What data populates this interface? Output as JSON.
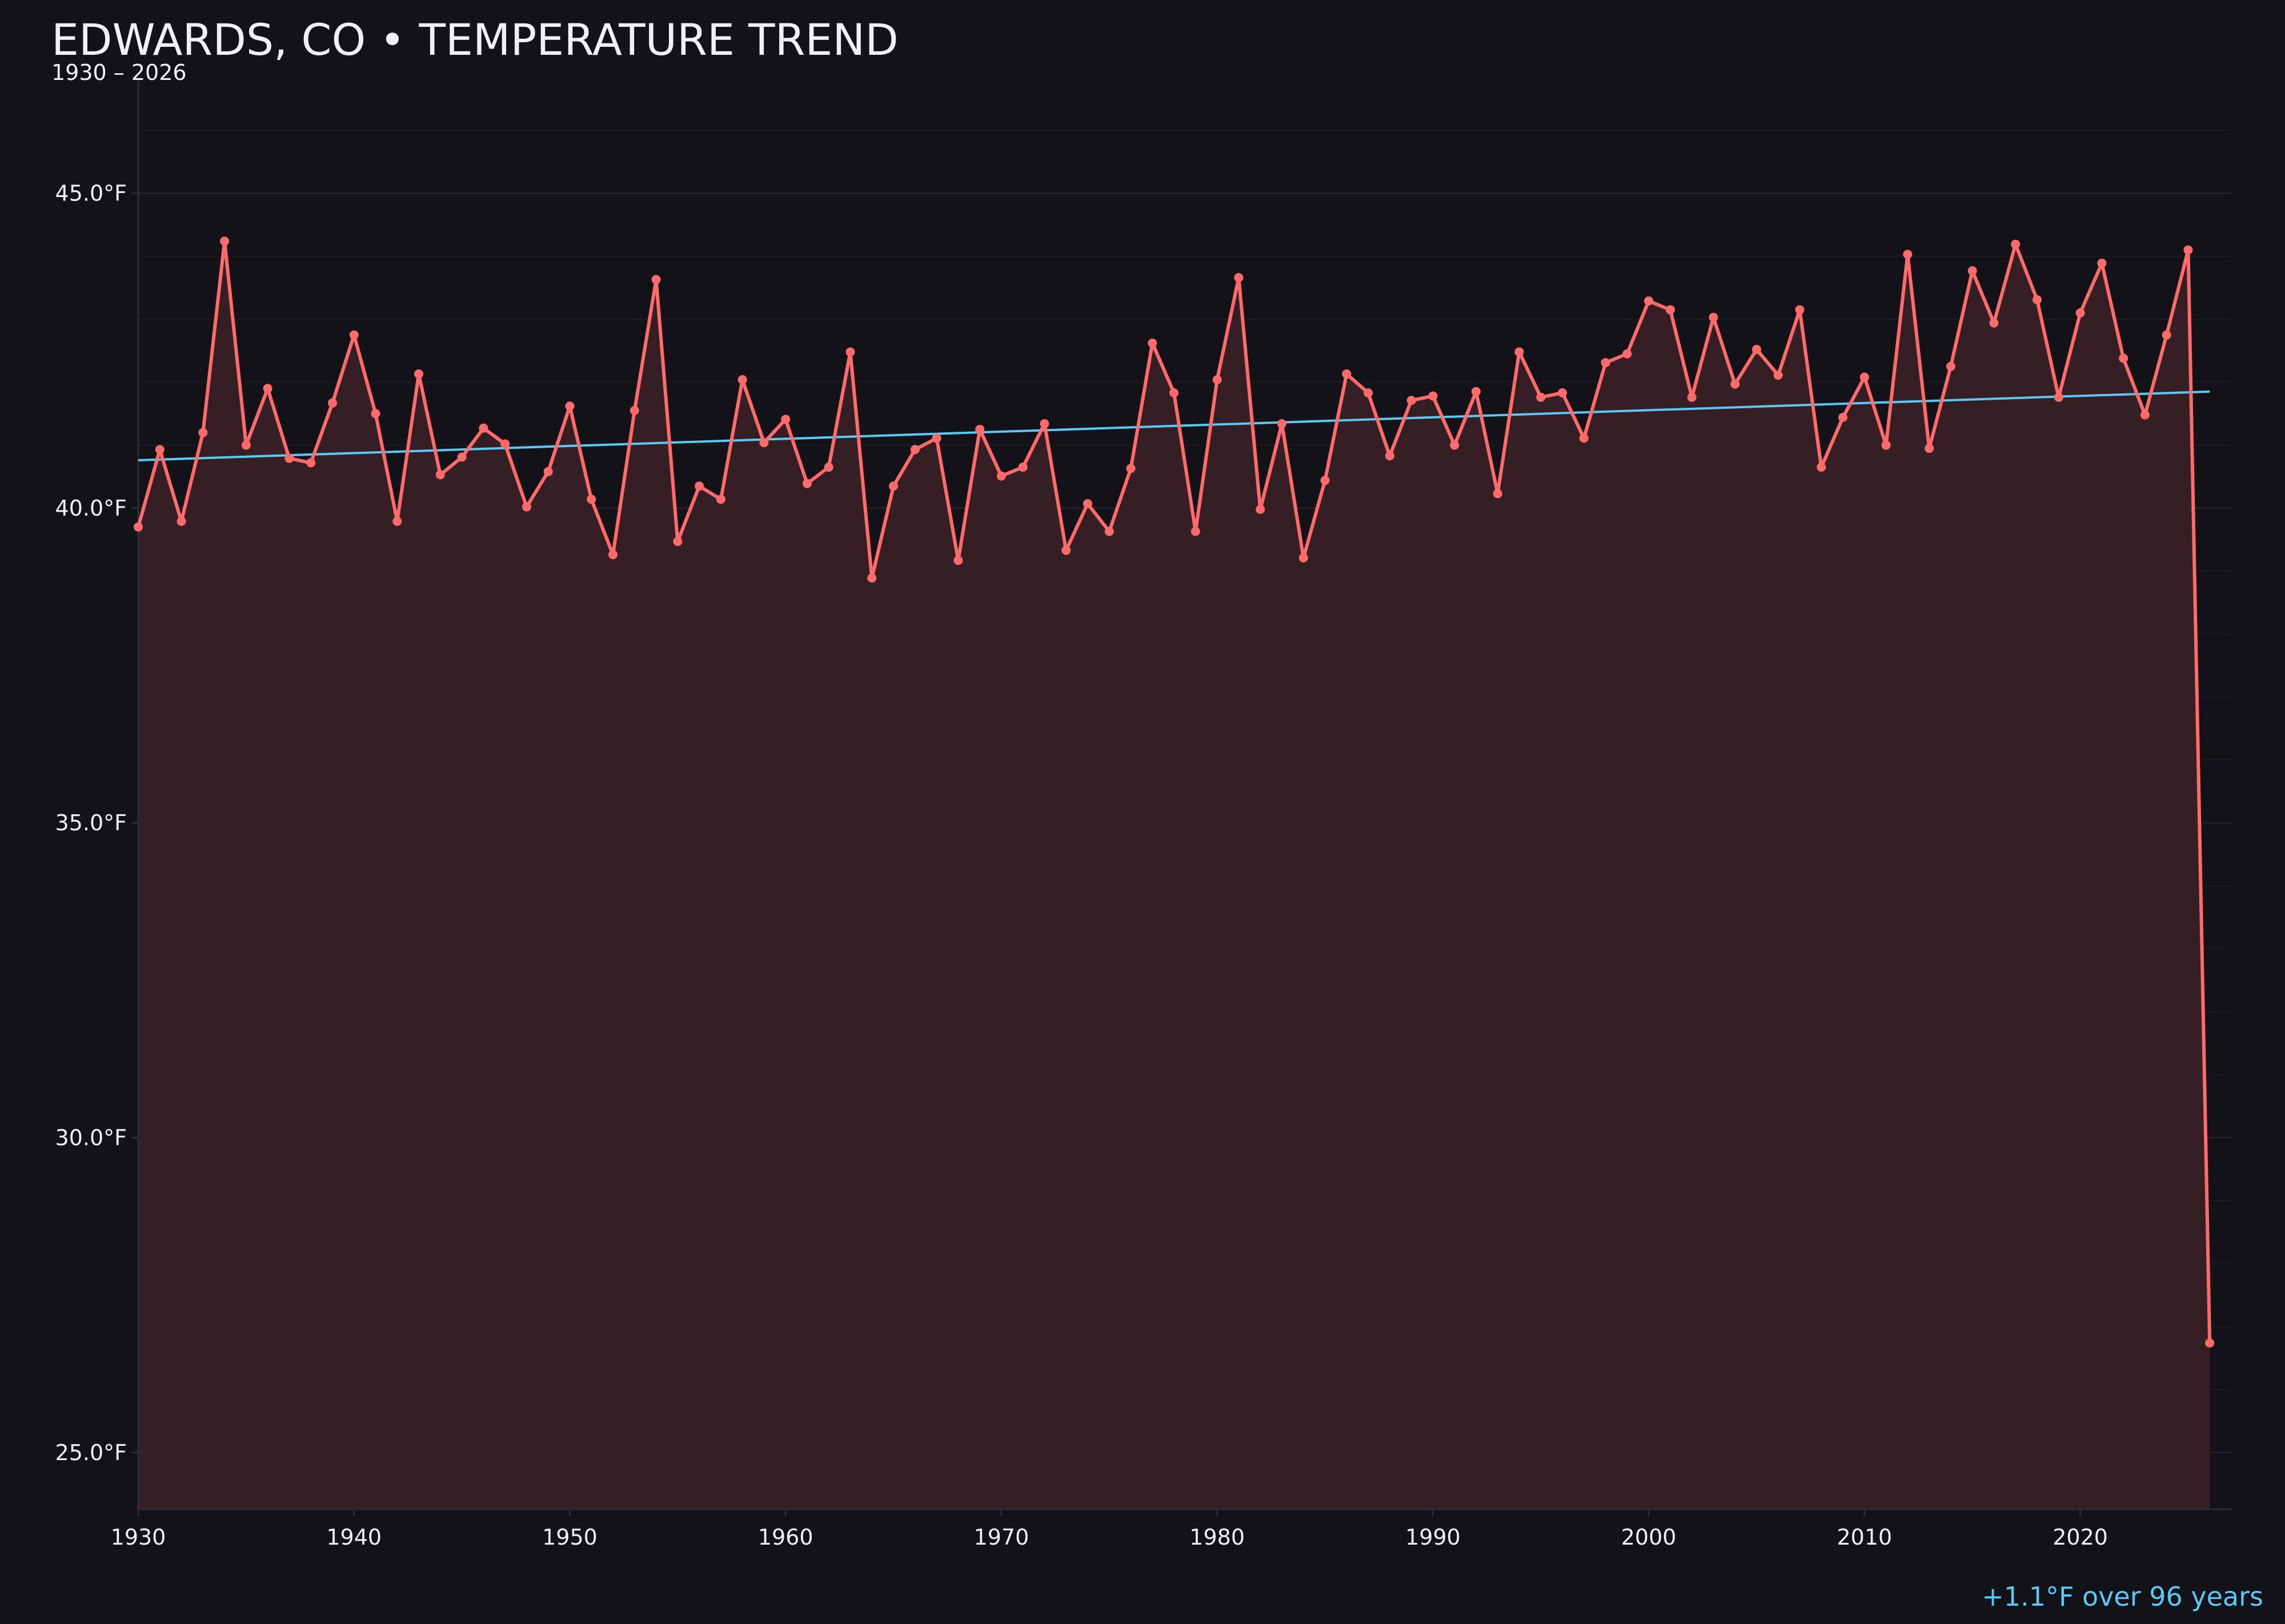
{
  "title": "EDWARDS, CO • TEMPERATURE TREND",
  "subtitle": "1930 – 2026",
  "annotation": "+1.1°F over 96 years",
  "colors": {
    "background": "#121218",
    "line": "#ff6b6b",
    "fill": "#351f25",
    "trend": "#5bc8f5",
    "text": "#f0f0f5",
    "grid": "#24212a"
  },
  "chart_data": {
    "type": "line",
    "title": "EDWARDS, CO • TEMPERATURE TREND",
    "subtitle": "1930 – 2026",
    "xlabel": "",
    "ylabel": "",
    "xlim": [
      1930,
      2027
    ],
    "ylim": [
      24.1,
      46.8
    ],
    "grid": true,
    "area_fill": true,
    "x_ticks": [
      1930,
      1940,
      1950,
      1960,
      1970,
      1980,
      1990,
      2000,
      2010,
      2020
    ],
    "x_tick_labels": [
      "1930",
      "1940",
      "1950",
      "1960",
      "1970",
      "1980",
      "1990",
      "2000",
      "2010",
      "2020"
    ],
    "y_ticks": [
      25,
      30,
      35,
      40,
      45
    ],
    "y_tick_labels": [
      "25.0°F",
      "30.0°F",
      "35.0°F",
      "40.0°F",
      "45.0°F"
    ],
    "x_start": 1930,
    "values": [
      39.7,
      40.93,
      39.79,
      41.2,
      44.24,
      41.0,
      41.9,
      40.79,
      40.72,
      41.67,
      42.75,
      41.5,
      39.79,
      42.13,
      40.53,
      40.81,
      41.27,
      41.02,
      40.02,
      40.58,
      41.62,
      40.14,
      39.26,
      41.55,
      43.63,
      39.47,
      40.35,
      40.14,
      42.04,
      41.04,
      41.41,
      40.39,
      40.65,
      42.48,
      38.89,
      40.35,
      40.93,
      41.11,
      39.17,
      41.25,
      40.51,
      40.65,
      41.34,
      39.33,
      40.07,
      39.63,
      40.63,
      42.62,
      41.83,
      39.63,
      42.04,
      43.66,
      39.98,
      41.34,
      39.21,
      40.44,
      42.13,
      41.83,
      40.83,
      41.71,
      41.78,
      41.0,
      41.85,
      40.23,
      42.48,
      41.76,
      41.83,
      41.11,
      42.31,
      42.45,
      43.29,
      43.15,
      41.76,
      43.03,
      41.97,
      42.52,
      42.11,
      43.15,
      40.65,
      41.44,
      42.08,
      41.0,
      44.03,
      40.95,
      42.25,
      43.77,
      42.94,
      44.19,
      43.31,
      41.76,
      43.1,
      43.89,
      42.38,
      41.48,
      42.75,
      44.1,
      26.74
    ],
    "trend": {
      "x": [
        1930,
        2026
      ],
      "y": [
        40.76,
        41.85
      ]
    },
    "annotation": "+1.1°F over 96 years"
  }
}
